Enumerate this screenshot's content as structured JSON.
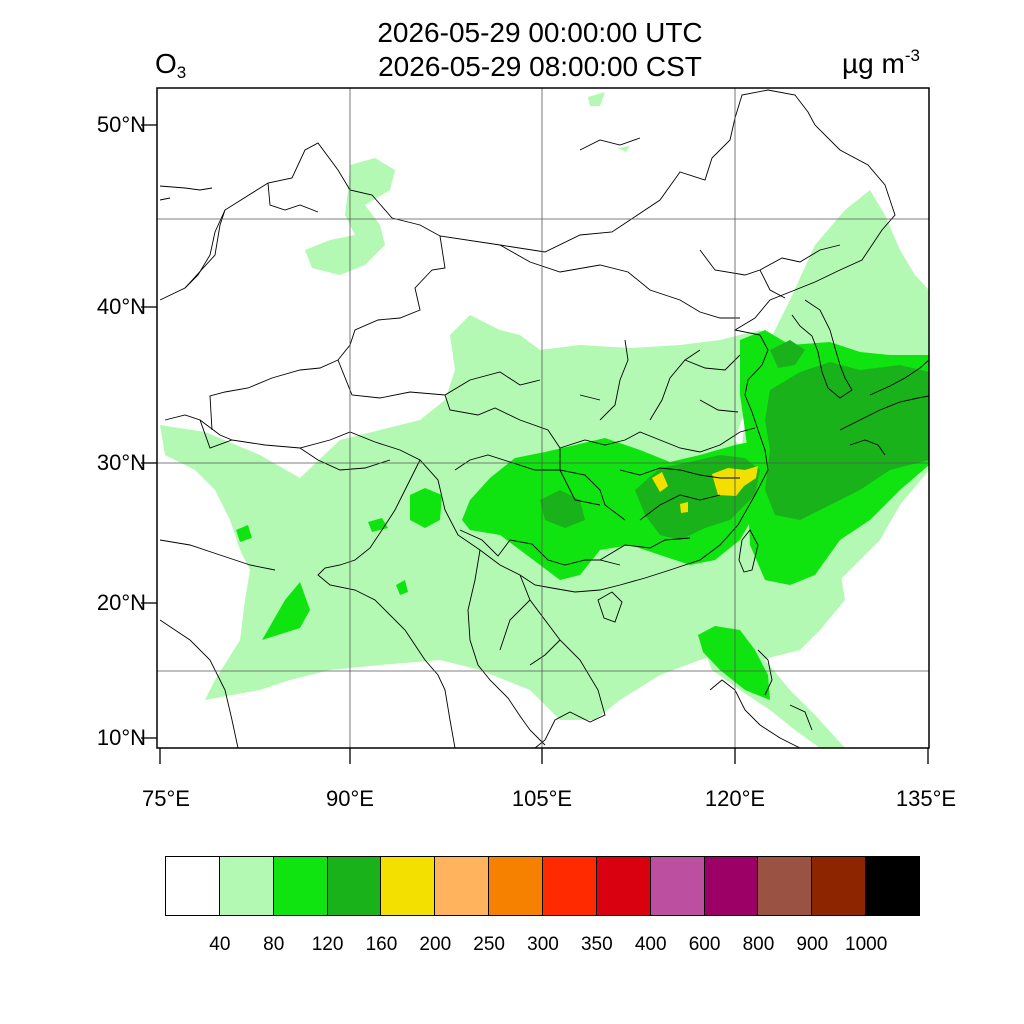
{
  "header": {
    "time_utc": "2026-05-29 00:00:00 UTC",
    "time_cst": "2026-05-29 08:00:00 CST",
    "species_main": "O",
    "species_sub": "3",
    "units_main": "µg m",
    "units_sup": "-3"
  },
  "axes": {
    "lat_labels": [
      "50°N",
      "40°N",
      "30°N",
      "20°N",
      "10°N"
    ],
    "lon_labels": [
      "75°E",
      "90°E",
      "105°E",
      "120°E",
      "135°E"
    ]
  },
  "legend": {
    "colors": [
      "#ffffff",
      "#b3f9b3",
      "#10e410",
      "#1ab21a",
      "#f3e000",
      "#ffb35c",
      "#f68000",
      "#ff2a00",
      "#d9000f",
      "#bd4fa0",
      "#9c0066",
      "#9a5343",
      "#8c2500",
      "#000000"
    ],
    "labels": [
      "40",
      "80",
      "120",
      "160",
      "200",
      "250",
      "300",
      "350",
      "400",
      "600",
      "800",
      "900",
      "1000"
    ]
  }
}
